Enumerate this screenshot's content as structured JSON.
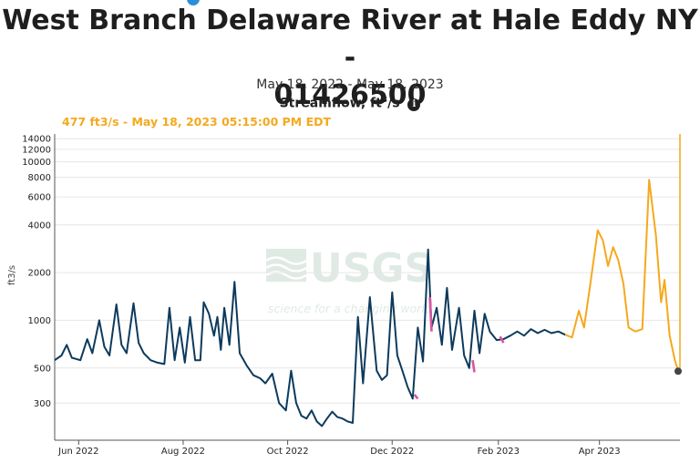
{
  "title_line1": "West Branch Delaware River at Hale Eddy NY -",
  "title_line2": "01426500",
  "date_range": "May 18, 2022 - May 18, 2023",
  "parameter": "Streamflow, ft",
  "parameter_unit_sup": "3",
  "parameter_unit_tail": "/s",
  "info_icon": "i",
  "current_readout": "477 ft3/s - May 18, 2023 05:15:00 PM EDT",
  "watermark": {
    "logo": "USGS",
    "tagline": "science for a changing world"
  },
  "colors": {
    "approved": "#0d3a5c",
    "provisional": "#f4a91d",
    "estimated": "#d9559f",
    "readout": "#f4a91d"
  },
  "chart_data": {
    "type": "line",
    "ylabel": "ft3/s",
    "yscale": "log",
    "ylim": [
      175,
      15000
    ],
    "xlim": [
      "2022-05-18",
      "2023-05-18"
    ],
    "yticks": [
      300,
      500,
      1000,
      2000,
      4000,
      6000,
      8000,
      10000,
      12000,
      14000
    ],
    "xticks": [
      {
        "date": "2022-06-01",
        "label": "Jun 2022"
      },
      {
        "date": "2022-08-01",
        "label": "Aug 2022"
      },
      {
        "date": "2022-10-01",
        "label": "Oct 2022"
      },
      {
        "date": "2022-12-01",
        "label": "Dec 2022"
      },
      {
        "date": "2023-02-01",
        "label": "Feb 2023"
      },
      {
        "date": "2023-04-01",
        "label": "Apr 2023"
      }
    ],
    "series": [
      {
        "status": "approved",
        "points": [
          [
            "2022-05-18",
            560
          ],
          [
            "2022-05-22",
            600
          ],
          [
            "2022-05-25",
            700
          ],
          [
            "2022-05-28",
            580
          ],
          [
            "2022-06-02",
            560
          ],
          [
            "2022-06-06",
            760
          ],
          [
            "2022-06-09",
            620
          ],
          [
            "2022-06-13",
            1000
          ],
          [
            "2022-06-16",
            680
          ],
          [
            "2022-06-19",
            600
          ],
          [
            "2022-06-23",
            1260
          ],
          [
            "2022-06-26",
            700
          ],
          [
            "2022-06-29",
            620
          ],
          [
            "2022-07-03",
            1280
          ],
          [
            "2022-07-06",
            720
          ],
          [
            "2022-07-09",
            620
          ],
          [
            "2022-07-13",
            560
          ],
          [
            "2022-07-17",
            540
          ],
          [
            "2022-07-21",
            530
          ],
          [
            "2022-07-24",
            1200
          ],
          [
            "2022-07-27",
            560
          ],
          [
            "2022-07-30",
            900
          ],
          [
            "2022-08-02",
            540
          ],
          [
            "2022-08-05",
            1050
          ],
          [
            "2022-08-08",
            560
          ],
          [
            "2022-08-11",
            560
          ],
          [
            "2022-08-13",
            1300
          ],
          [
            "2022-08-16",
            1100
          ],
          [
            "2022-08-19",
            800
          ],
          [
            "2022-08-21",
            1050
          ],
          [
            "2022-08-23",
            650
          ],
          [
            "2022-08-25",
            1200
          ],
          [
            "2022-08-28",
            700
          ],
          [
            "2022-08-31",
            1750
          ],
          [
            "2022-09-03",
            620
          ],
          [
            "2022-09-07",
            520
          ],
          [
            "2022-09-11",
            450
          ],
          [
            "2022-09-15",
            430
          ],
          [
            "2022-09-18",
            400
          ],
          [
            "2022-09-22",
            460
          ],
          [
            "2022-09-26",
            300
          ],
          [
            "2022-09-30",
            270
          ],
          [
            "2022-10-03",
            480
          ],
          [
            "2022-10-06",
            300
          ],
          [
            "2022-10-09",
            250
          ],
          [
            "2022-10-12",
            240
          ],
          [
            "2022-10-15",
            270
          ],
          [
            "2022-10-18",
            230
          ],
          [
            "2022-10-21",
            215
          ],
          [
            "2022-10-24",
            240
          ],
          [
            "2022-10-27",
            265
          ],
          [
            "2022-10-30",
            245
          ],
          [
            "2022-11-02",
            240
          ],
          [
            "2022-11-05",
            230
          ],
          [
            "2022-11-08",
            225
          ],
          [
            "2022-11-11",
            1050
          ],
          [
            "2022-11-14",
            400
          ],
          [
            "2022-11-18",
            1400
          ],
          [
            "2022-11-22",
            480
          ],
          [
            "2022-11-25",
            420
          ],
          [
            "2022-11-28",
            450
          ],
          [
            "2022-12-01",
            1500
          ],
          [
            "2022-12-04",
            600
          ],
          [
            "2022-12-07",
            480
          ],
          [
            "2022-12-10",
            380
          ],
          [
            "2022-12-13",
            320
          ],
          [
            "2022-12-16",
            900
          ],
          [
            "2022-12-19",
            550
          ],
          [
            "2022-12-22",
            2800
          ],
          [
            "2022-12-24",
            900
          ],
          [
            "2022-12-27",
            1200
          ],
          [
            "2022-12-30",
            700
          ],
          [
            "2023-01-02",
            1600
          ],
          [
            "2023-01-05",
            650
          ],
          [
            "2023-01-09",
            1200
          ],
          [
            "2023-01-12",
            600
          ],
          [
            "2023-01-15",
            500
          ],
          [
            "2023-01-18",
            1150
          ],
          [
            "2023-01-21",
            620
          ],
          [
            "2023-01-24",
            1100
          ],
          [
            "2023-01-27",
            850
          ],
          [
            "2023-01-31",
            750
          ],
          [
            "2023-02-04",
            760
          ],
          [
            "2023-02-08",
            800
          ],
          [
            "2023-02-12",
            850
          ],
          [
            "2023-02-16",
            800
          ],
          [
            "2023-02-20",
            880
          ],
          [
            "2023-02-24",
            830
          ],
          [
            "2023-02-28",
            870
          ],
          [
            "2023-03-04",
            830
          ],
          [
            "2023-03-08",
            850
          ],
          [
            "2023-03-12",
            810
          ]
        ]
      },
      {
        "status": "provisional",
        "points": [
          [
            "2023-03-12",
            810
          ],
          [
            "2023-03-16",
            780
          ],
          [
            "2023-03-20",
            1150
          ],
          [
            "2023-03-23",
            900
          ],
          [
            "2023-03-27",
            1800
          ],
          [
            "2023-03-31",
            3700
          ],
          [
            "2023-04-03",
            3200
          ],
          [
            "2023-04-06",
            2200
          ],
          [
            "2023-04-09",
            2900
          ],
          [
            "2023-04-12",
            2400
          ],
          [
            "2023-04-15",
            1700
          ],
          [
            "2023-04-18",
            900
          ],
          [
            "2023-04-22",
            850
          ],
          [
            "2023-04-26",
            880
          ],
          [
            "2023-04-30",
            7700
          ],
          [
            "2023-05-04",
            3400
          ],
          [
            "2023-05-07",
            1300
          ],
          [
            "2023-05-09",
            1800
          ],
          [
            "2023-05-12",
            800
          ],
          [
            "2023-05-15",
            560
          ],
          [
            "2023-05-17",
            480
          ],
          [
            "2023-05-18",
            477
          ]
        ]
      },
      {
        "status": "estimated",
        "points": [
          [
            "2022-12-14",
            340
          ],
          [
            "2022-12-16",
            320
          ],
          [
            "2022-12-23",
            1400
          ],
          [
            "2022-12-24",
            850
          ],
          [
            "2023-01-17",
            560
          ],
          [
            "2023-01-18",
            470
          ],
          [
            "2023-02-02",
            790
          ],
          [
            "2023-02-04",
            720
          ]
        ]
      }
    ],
    "current_point": {
      "date": "2023-05-18",
      "value": 477
    }
  }
}
